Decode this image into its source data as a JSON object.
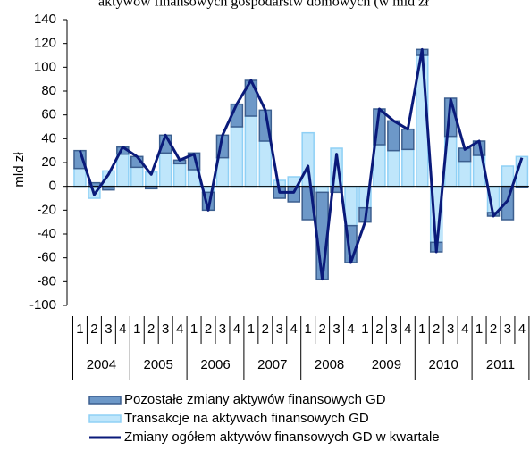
{
  "chart_data": {
    "type": "stacked-bar-line",
    "title": "aktywów finansowych gospodarstw domowych (w mld zł",
    "ylabel": "mld zł",
    "categories": [
      "1",
      "2",
      "3",
      "4",
      "1",
      "2",
      "3",
      "4",
      "1",
      "2",
      "3",
      "4",
      "1",
      "2",
      "3",
      "4",
      "1",
      "2",
      "3",
      "4",
      "1",
      "2",
      "3",
      "4",
      "1",
      "2",
      "3",
      "4",
      "1",
      "2",
      "3",
      "4"
    ],
    "groups": [
      "2004",
      "2005",
      "2006",
      "2007",
      "2008",
      "2009",
      "2010",
      "2011"
    ],
    "ylim": [
      -100,
      140
    ],
    "yticks": [
      -100,
      -80,
      -60,
      -40,
      -20,
      0,
      20,
      40,
      60,
      80,
      100,
      120,
      140
    ],
    "series": [
      {
        "name": "Pozostałe zmiany aktywów finansowych GD",
        "kind": "bar",
        "color": "#6d98c8",
        "values": [
          15,
          3,
          -3,
          6,
          9,
          -2,
          15,
          3,
          14,
          -15,
          19,
          19,
          30,
          26,
          -10,
          -13,
          -28,
          -73,
          -5,
          -31,
          -12,
          30,
          25,
          17,
          5,
          -8,
          32,
          11,
          12,
          -3,
          -28,
          -1
        ]
      },
      {
        "name": "Transakcje na aktywach finansowych GD",
        "kind": "bar",
        "color": "#bfe6fb",
        "values": [
          15,
          -10,
          13,
          27,
          16,
          12,
          28,
          19,
          14,
          -5,
          24,
          50,
          59,
          38,
          5,
          8,
          45,
          -5,
          32,
          -33,
          -18,
          35,
          30,
          31,
          110,
          -47,
          42,
          21,
          26,
          -22,
          17,
          25
        ]
      },
      {
        "name": "Zmiany ogółem aktywów finansowych GD w kwartale",
        "kind": "line",
        "color": "#0a1a7a",
        "values": [
          30,
          -7,
          10,
          33,
          25,
          10,
          43,
          22,
          27,
          -20,
          43,
          69,
          89,
          64,
          -5,
          -5,
          17,
          -78,
          27,
          -64,
          -30,
          65,
          55,
          48,
          115,
          -55,
          73,
          31,
          38,
          -25,
          -12,
          24
        ]
      }
    ]
  }
}
